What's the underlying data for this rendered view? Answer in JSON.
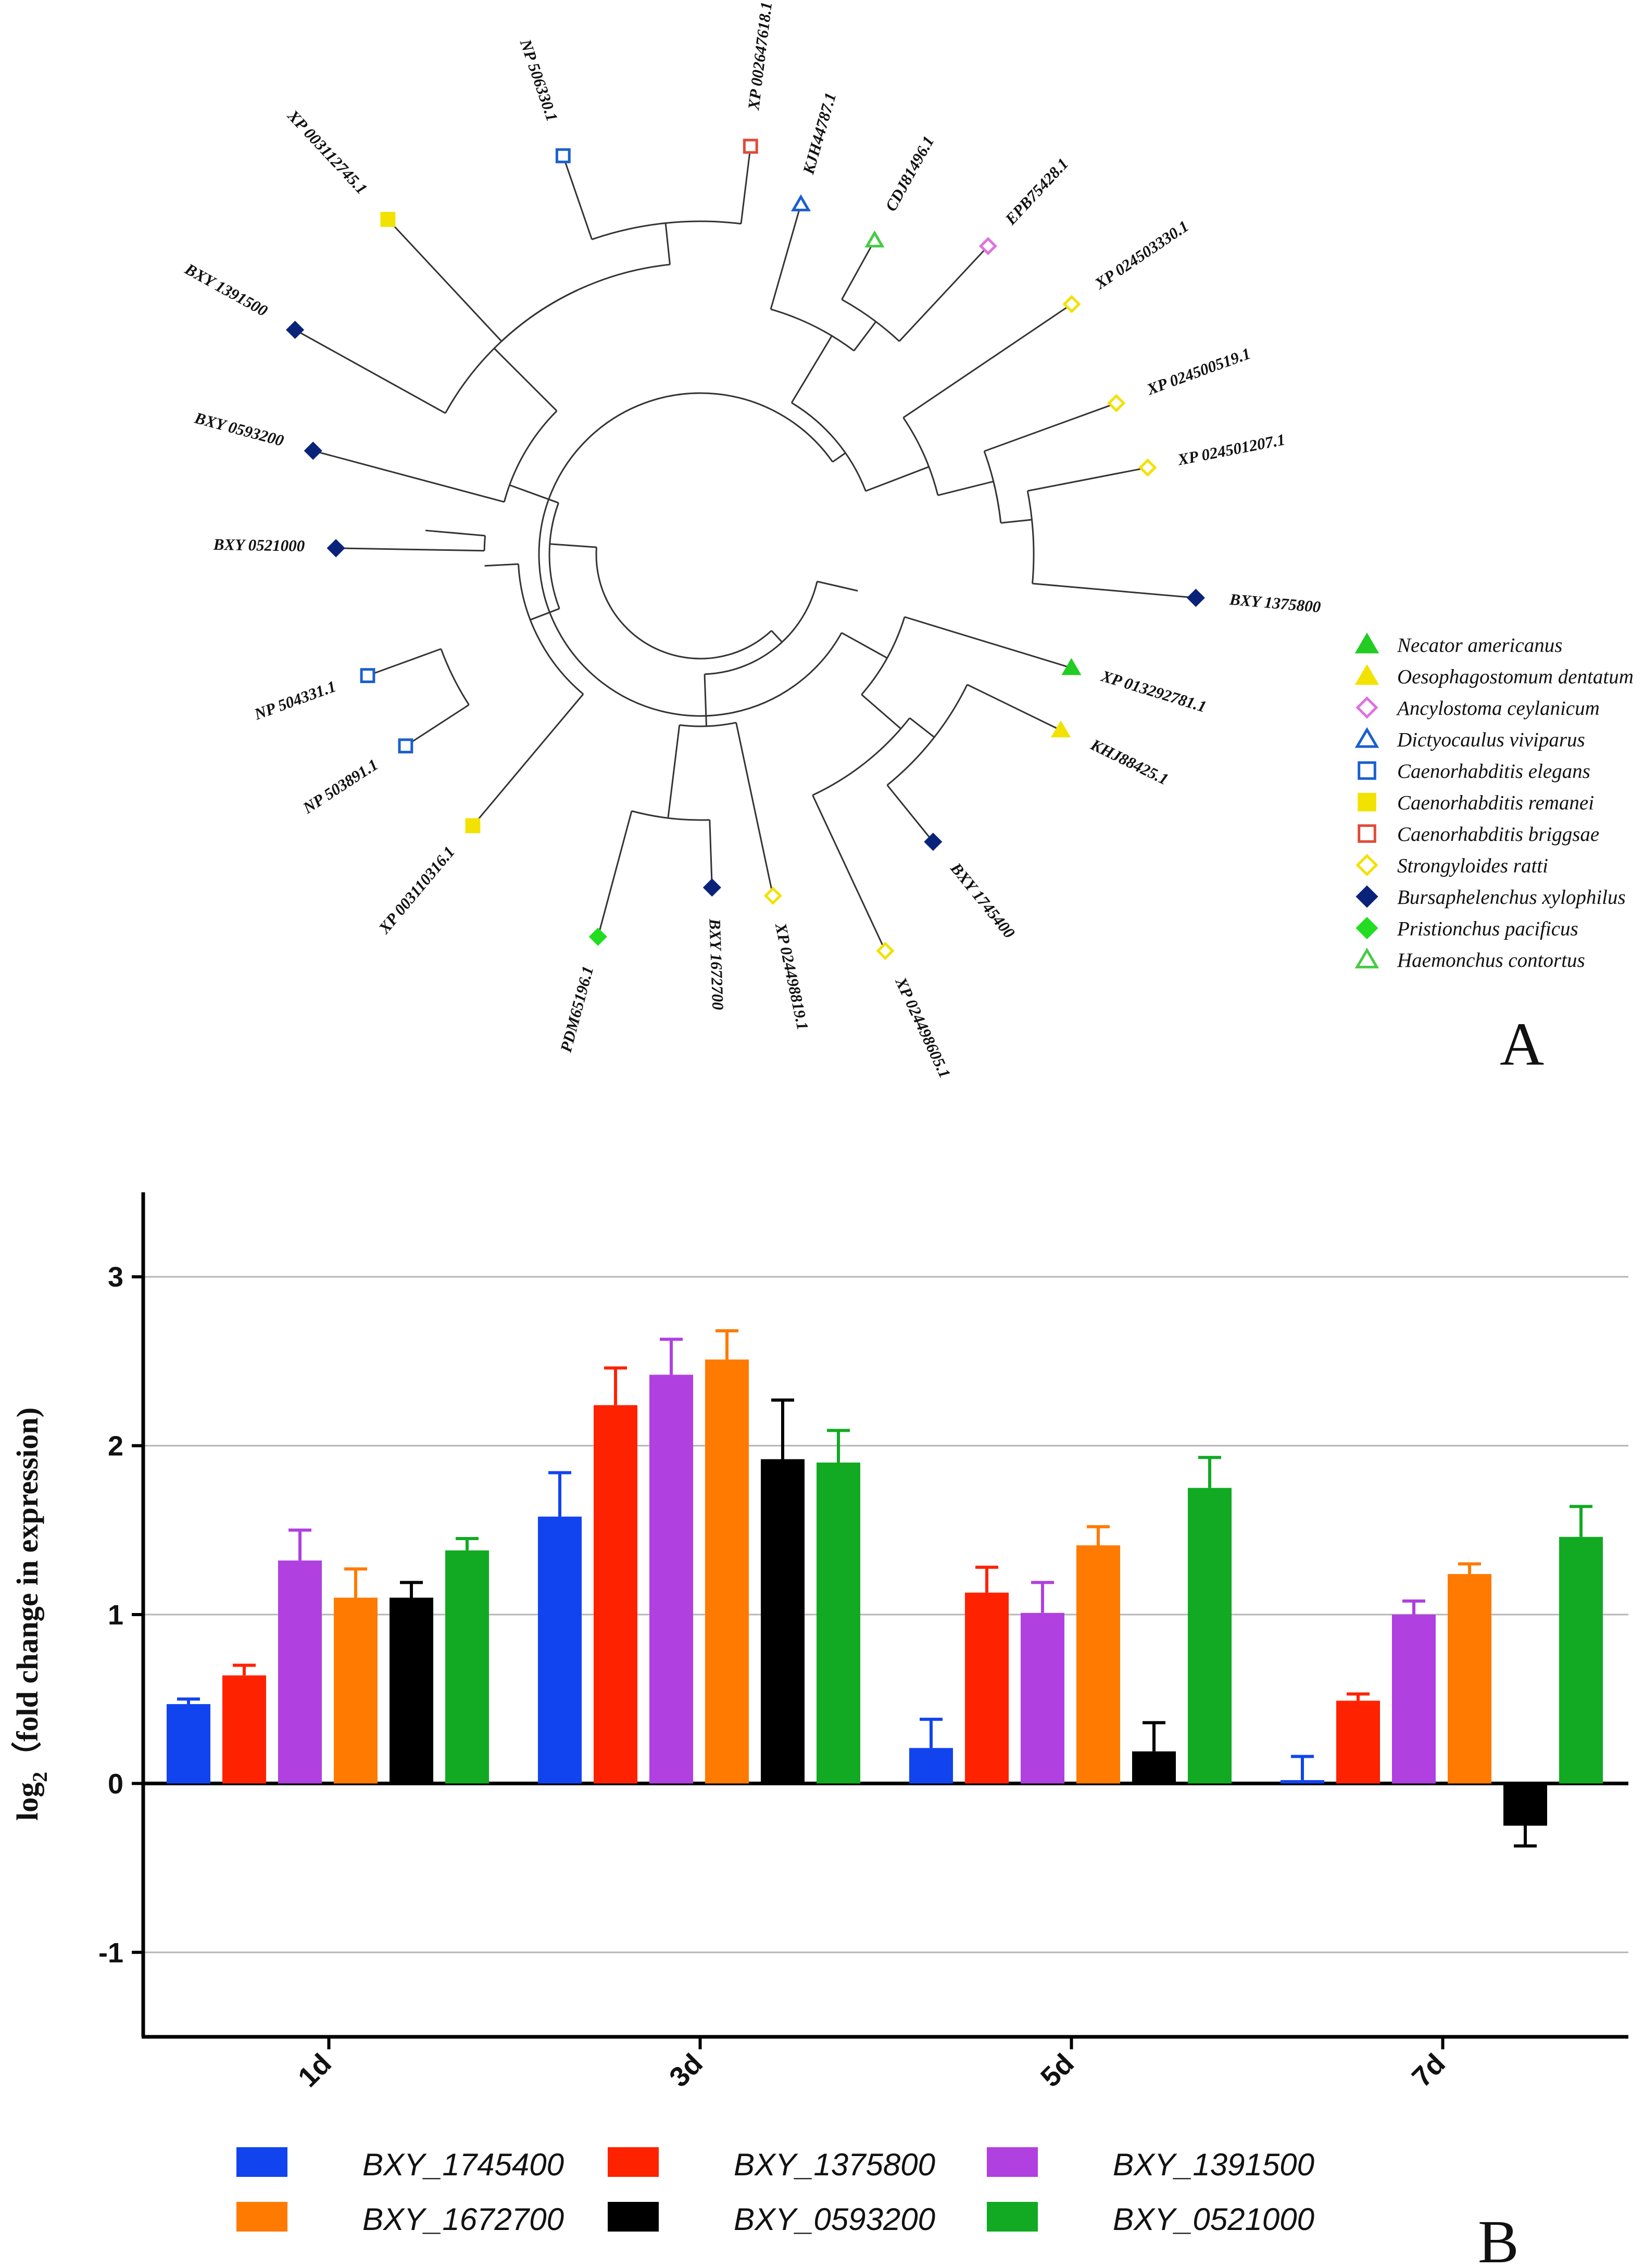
{
  "panel_a": {
    "label": "A",
    "tips": [
      {
        "label": "XP 002647618.1",
        "species": "Caenorhabditis briggsae"
      },
      {
        "label": "NP 506330.1",
        "species": "Caenorhabditis elegans"
      },
      {
        "label": "XP 003112745.1",
        "species": "Caenorhabditis remanei"
      },
      {
        "label": "BXY 1391500",
        "species": "Bursaphelenchus xylophilus"
      },
      {
        "label": "BXY 0593200",
        "species": "Bursaphelenchus xylophilus"
      },
      {
        "label": "BXY 0521000",
        "species": "Bursaphelenchus xylophilus"
      },
      {
        "label": "NP 504331.1",
        "species": "Caenorhabditis elegans"
      },
      {
        "label": "NP 503891.1",
        "species": "Caenorhabditis elegans"
      },
      {
        "label": "XP 003110316.1",
        "species": "Caenorhabditis remanei"
      },
      {
        "label": "PDM65196.1",
        "species": "Pristionchus pacificus"
      },
      {
        "label": "BXY 1672700",
        "species": "Bursaphelenchus xylophilus"
      },
      {
        "label": "XP 024498819.1",
        "species": "Strongyloides ratti"
      },
      {
        "label": "XP 024498605.1",
        "species": "Strongyloides ratti"
      },
      {
        "label": "BXY 1745400",
        "species": "Bursaphelenchus xylophilus"
      },
      {
        "label": "KHJ88425.1",
        "species": "Oesophagostomum dentatum"
      },
      {
        "label": "XP 013292781.1",
        "species": "Necator americanus"
      },
      {
        "label": "BXY 1375800",
        "species": "Bursaphelenchus xylophilus"
      },
      {
        "label": "XP 024501207.1",
        "species": "Strongyloides ratti"
      },
      {
        "label": "XP 024500519.1",
        "species": "Strongyloides ratti"
      },
      {
        "label": "XP 024503330.1",
        "species": "Strongyloides ratti"
      },
      {
        "label": "EPB75428.1",
        "species": "Ancylostoma ceylanicum"
      },
      {
        "label": "CDJ81496.1",
        "species": "Haemonchus contortus"
      },
      {
        "label": "KJH44787.1",
        "species": "Dictyocaulus viviparus"
      }
    ],
    "legend": [
      {
        "name": "Necator americanus",
        "shape": "triangle",
        "filled": true,
        "color": "#22cc22"
      },
      {
        "name": "Oesophagostomum dentatum",
        "shape": "triangle",
        "filled": true,
        "color": "#f2e200"
      },
      {
        "name": "Ancylostoma ceylanicum",
        "shape": "diamond",
        "filled": false,
        "color": "#e070e0"
      },
      {
        "name": "Dictyocaulus viviparus",
        "shape": "triangle",
        "filled": false,
        "color": "#1a5fd0"
      },
      {
        "name": "Caenorhabditis elegans",
        "shape": "square",
        "filled": false,
        "color": "#1a5fd0"
      },
      {
        "name": "Caenorhabditis remanei",
        "shape": "square",
        "filled": true,
        "color": "#f2e200"
      },
      {
        "name": "Caenorhabditis briggsae",
        "shape": "square",
        "filled": false,
        "color": "#e04a3a"
      },
      {
        "name": "Strongyloides ratti",
        "shape": "diamond",
        "filled": false,
        "color": "#f2e200"
      },
      {
        "name": "Bursaphelenchus xylophilus",
        "shape": "diamond",
        "filled": true,
        "color": "#0a237a"
      },
      {
        "name": "Pristionchus pacificus",
        "shape": "diamond",
        "filled": true,
        "color": "#22dd22"
      },
      {
        "name": "Haemonchus contortus",
        "shape": "triangle",
        "filled": false,
        "color": "#44cc44"
      }
    ]
  },
  "panel_b": {
    "label": "B"
  },
  "chart_data": {
    "type": "bar",
    "categories": [
      "1d",
      "3d",
      "5d",
      "7d"
    ],
    "ylabel_pre": "log",
    "ylabel_sub": "2",
    "ylabel_post": "（fold change in expression)",
    "ylim": [
      -1.5,
      3.5
    ],
    "yticks": [
      -1,
      0,
      1,
      2,
      3
    ],
    "grid": true,
    "legend_position": "bottom",
    "series": [
      {
        "name": "BXY_1745400",
        "color": "#1144ee",
        "values": [
          0.47,
          1.58,
          0.21,
          0.02
        ],
        "errors": [
          0.03,
          0.26,
          0.17,
          0.14
        ]
      },
      {
        "name": "BXY_1375800",
        "color": "#ff2200",
        "values": [
          0.64,
          2.24,
          1.13,
          0.49
        ],
        "errors": [
          0.06,
          0.22,
          0.15,
          0.04
        ]
      },
      {
        "name": "BXY_1391500",
        "color": "#b040e0",
        "values": [
          1.32,
          2.42,
          1.01,
          1.0
        ],
        "errors": [
          0.18,
          0.21,
          0.18,
          0.08
        ]
      },
      {
        "name": "BXY_1672700",
        "color": "#ff7a00",
        "values": [
          1.1,
          2.51,
          1.41,
          1.24
        ],
        "errors": [
          0.17,
          0.17,
          0.11,
          0.06
        ]
      },
      {
        "name": "BXY_0593200",
        "color": "#000000",
        "values": [
          1.1,
          1.92,
          0.19,
          -0.25
        ],
        "errors": [
          0.09,
          0.35,
          0.17,
          0.12
        ]
      },
      {
        "name": "BXY_0521000",
        "color": "#11aa22",
        "values": [
          1.38,
          1.9,
          1.75,
          1.46
        ],
        "errors": [
          0.07,
          0.19,
          0.18,
          0.18
        ]
      }
    ]
  }
}
